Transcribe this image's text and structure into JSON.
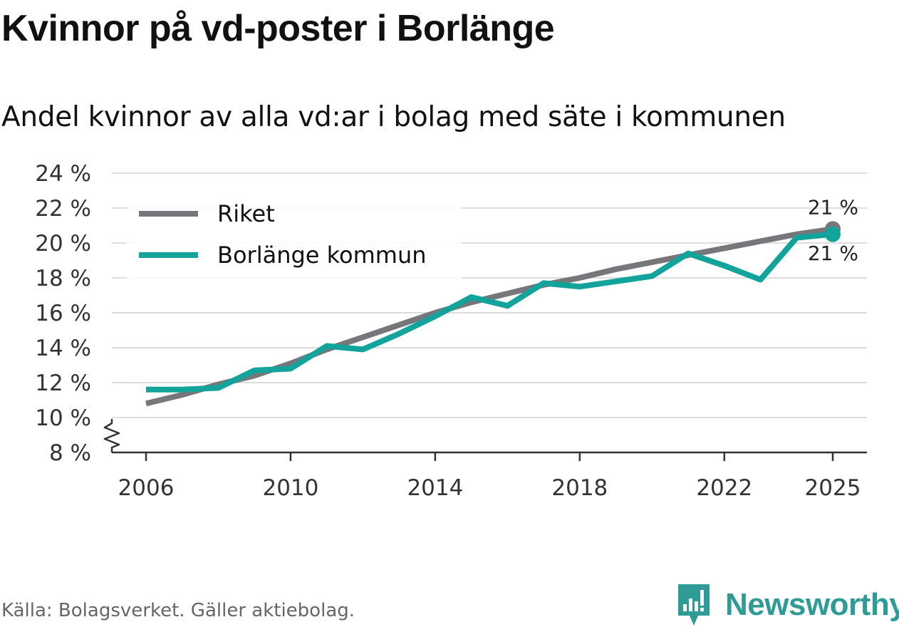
{
  "title": "Kvinnor på vd-poster i Borlänge",
  "subtitle": "Andel kvinnor av alla vd:ar i bolag med säte i kommunen",
  "source": "Källa: Bolagsverket. Gäller aktiebolag.",
  "brand": "Newsworthy",
  "colors": {
    "riket": "#77767b",
    "borlange": "#12a39a",
    "grid": "#dddddd",
    "axis": "#333333",
    "brand": "#2e9c94"
  },
  "chart_data": {
    "type": "line",
    "title": "Kvinnor på vd-poster i Borlänge",
    "subtitle": "Andel kvinnor av alla vd:ar i bolag med säte i kommunen",
    "xlabel": "",
    "ylabel": "",
    "x": [
      2006,
      2007,
      2008,
      2009,
      2010,
      2011,
      2012,
      2013,
      2014,
      2015,
      2016,
      2017,
      2018,
      2019,
      2020,
      2021,
      2022,
      2023,
      2024,
      2025
    ],
    "ylim": [
      8,
      24
    ],
    "yticks": [
      8,
      10,
      12,
      14,
      16,
      18,
      20,
      22,
      24
    ],
    "ytick_labels": [
      "8 %",
      "10 %",
      "12 %",
      "14 %",
      "16 %",
      "18 %",
      "20 %",
      "22 %",
      "24 %"
    ],
    "xticks": [
      2006,
      2010,
      2014,
      2018,
      2022,
      2025
    ],
    "xtick_labels": [
      "2006",
      "2010",
      "2014",
      "2018",
      "2022",
      "2025"
    ],
    "axis_break": true,
    "grid": true,
    "legend_position": "top-left",
    "series": [
      {
        "name": "Riket",
        "color": "#77767b",
        "values": [
          10.8,
          11.3,
          11.9,
          12.4,
          13.1,
          13.9,
          14.6,
          15.3,
          16.0,
          16.6,
          17.1,
          17.6,
          18.0,
          18.5,
          18.9,
          19.3,
          19.7,
          20.1,
          20.5,
          20.8
        ],
        "end_label": "21 %"
      },
      {
        "name": "Borlänge kommun",
        "color": "#12a39a",
        "values": [
          11.6,
          11.6,
          11.7,
          12.7,
          12.8,
          14.1,
          13.9,
          14.8,
          15.8,
          16.9,
          16.4,
          17.7,
          17.5,
          17.8,
          18.1,
          19.4,
          18.7,
          17.9,
          20.3,
          20.5
        ],
        "end_label": "21 %"
      }
    ]
  }
}
